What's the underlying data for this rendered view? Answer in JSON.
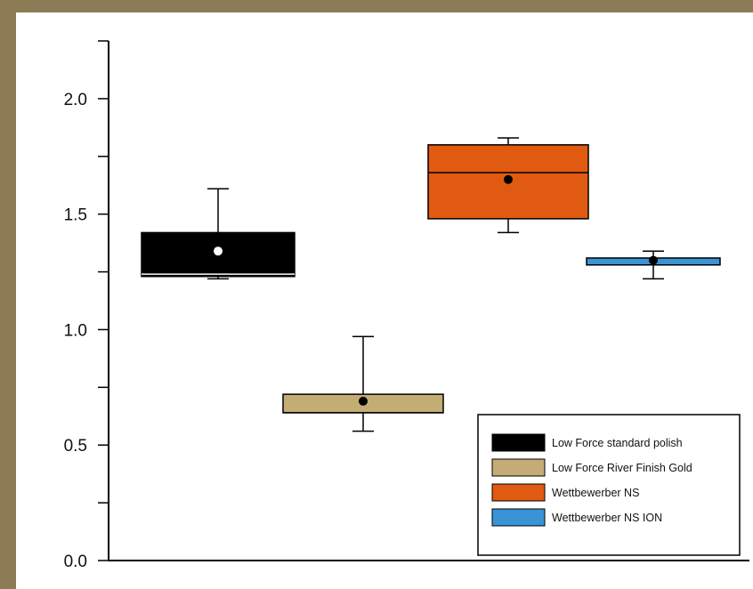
{
  "chart_data": {
    "type": "box",
    "title": "",
    "xlabel": "",
    "ylabel": "",
    "ylim": [
      0,
      2.25
    ],
    "yticks": [
      {
        "value": 0.0,
        "label": "0.0"
      },
      {
        "value": 0.5,
        "label": "0.5"
      },
      {
        "value": 1.0,
        "label": "1.0"
      },
      {
        "value": 1.5,
        "label": "1.5"
      },
      {
        "value": 2.0,
        "label": "2.0"
      }
    ],
    "grid": false,
    "legend_position": "bottom-right",
    "series": [
      {
        "name": "Low Force standard polish",
        "color": "#000000",
        "marker_color": "#ffffff",
        "whisker_low": 1.22,
        "q1": 1.23,
        "median": 1.24,
        "q3": 1.42,
        "whisker_high": 1.61,
        "mean": 1.34
      },
      {
        "name": "Low Force River Finish Gold",
        "color": "#c4ad74",
        "marker_color": "#000000",
        "whisker_low": 0.56,
        "q1": 0.64,
        "median": 0.64,
        "q3": 0.72,
        "whisker_high": 0.97,
        "mean": 0.69
      },
      {
        "name": "Wettbewerber NS",
        "color": "#e05a12",
        "marker_color": "#000000",
        "whisker_low": 1.42,
        "q1": 1.48,
        "median": 1.68,
        "q3": 1.8,
        "whisker_high": 1.83,
        "mean": 1.65
      },
      {
        "name": "Wettbewerber NS ION",
        "color": "#3a93d4",
        "marker_color": "#000000",
        "whisker_low": 1.22,
        "q1": 1.28,
        "median": 1.28,
        "q3": 1.31,
        "whisker_high": 1.34,
        "mean": 1.3
      }
    ]
  }
}
